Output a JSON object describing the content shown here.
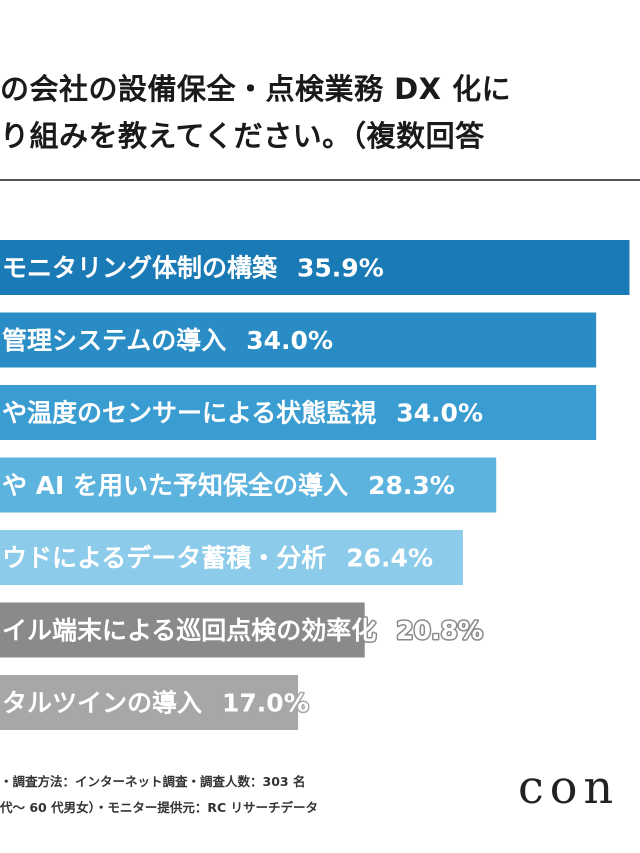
{
  "title": {
    "line1": "の会社の設備保全・点検業務 DX 化に",
    "line2": "り組みを教えてください。（複数回答"
  },
  "chart_data": {
    "type": "bar",
    "orientation": "horizontal",
    "categories": [
      "モニタリング体制の構築",
      "管理システムの導入",
      "や温度のセンサーによる状態監視",
      "や AI を用いた予知保全の導入",
      "ウドによるデータ蓄積・分析",
      "イル端末による巡回点検の効率化",
      "タルツインの導入"
    ],
    "values": [
      35.9,
      34.0,
      34.0,
      28.3,
      26.4,
      20.8,
      17.0
    ],
    "value_labels": [
      "35.9%",
      "34.0%",
      "34.0%",
      "28.3%",
      "26.4%",
      "20.8%",
      "17.0%"
    ],
    "colors": [
      "#1a7ab5",
      "#2a8cc5",
      "#3a9dd2",
      "#5cb3de",
      "#8ccbe9",
      "#8a8a8a",
      "#a7a7a7"
    ],
    "xlim": [
      0,
      36.5
    ],
    "legend": "none",
    "grid": false
  },
  "footer": {
    "line1": "・調査方法：インターネット調査・調査人数：303 名",
    "line2": "代～ 60 代男女）・モニター提供元：RC リサーチデータ"
  },
  "logo": {
    "text": "con"
  }
}
